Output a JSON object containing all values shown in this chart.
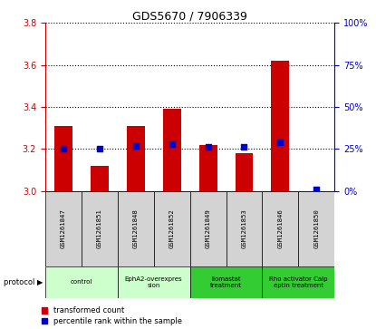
{
  "title": "GDS5670 / 7906339",
  "samples": [
    "GSM1261847",
    "GSM1261851",
    "GSM1261848",
    "GSM1261852",
    "GSM1261849",
    "GSM1261853",
    "GSM1261846",
    "GSM1261850"
  ],
  "transformed_counts": [
    3.31,
    3.12,
    3.31,
    3.39,
    3.22,
    3.18,
    3.62,
    3.0
  ],
  "percentile_ranks": [
    25,
    25,
    27,
    28,
    26,
    26,
    29,
    1
  ],
  "ylim_left": [
    3.0,
    3.8
  ],
  "ylim_right": [
    0,
    100
  ],
  "yticks_left": [
    3.0,
    3.2,
    3.4,
    3.6,
    3.8
  ],
  "yticks_right": [
    0,
    25,
    50,
    75,
    100
  ],
  "protocols": [
    {
      "label": "control",
      "color": "#ccffcc",
      "span": [
        0,
        2
      ]
    },
    {
      "label": "EphA2-overexpres\nsion",
      "color": "#ccffcc",
      "span": [
        2,
        4
      ]
    },
    {
      "label": "Ilomastat\ntreatment",
      "color": "#33cc33",
      "span": [
        4,
        6
      ]
    },
    {
      "label": "Rho activator Calp\neptin treatment",
      "color": "#33cc33",
      "span": [
        6,
        8
      ]
    }
  ],
  "bar_color": "#cc0000",
  "dot_color": "#0000cc",
  "bar_width": 0.5,
  "dot_size": 20,
  "background_color": "#ffffff",
  "ylabel_left_color": "#cc0000",
  "ylabel_right_color": "#0000cc",
  "sample_bg_color": "#d3d3d3",
  "protocol_light_color": "#ccffcc",
  "protocol_dark_color": "#33cc33"
}
